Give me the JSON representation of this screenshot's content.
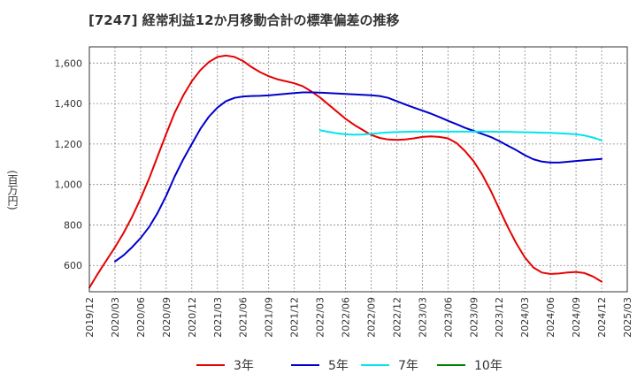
{
  "chart_data": {
    "type": "line",
    "title": "[7247]  経常利益12か月移動合計の標準偏差の推移",
    "ylabel": "(百万円)",
    "xlabel": "",
    "ylim": [
      470,
      1680
    ],
    "yticks": [
      600,
      800,
      1000,
      1200,
      1400,
      1600
    ],
    "ytick_labels": [
      "600",
      "800",
      "1,000",
      "1,200",
      "1,400",
      "1,600"
    ],
    "xticks": [
      "2019/12",
      "2020/03",
      "2020/06",
      "2020/09",
      "2020/12",
      "2021/03",
      "2021/06",
      "2021/09",
      "2021/12",
      "2022/03",
      "2022/06",
      "2022/09",
      "2022/12",
      "2023/03",
      "2023/06",
      "2023/09",
      "2023/12",
      "2024/03",
      "2024/06",
      "2024/09",
      "2024/12",
      "2025/03"
    ],
    "grid": true,
    "legend_position": "bottom",
    "series": [
      {
        "name": "3年",
        "color": "#e60000",
        "x": [
          "2019/12",
          "2020/01",
          "2020/02",
          "2020/03",
          "2020/04",
          "2020/05",
          "2020/06",
          "2020/07",
          "2020/08",
          "2020/09",
          "2020/10",
          "2020/11",
          "2020/12",
          "2021/01",
          "2021/02",
          "2021/03",
          "2021/04",
          "2021/05",
          "2021/06",
          "2021/07",
          "2021/08",
          "2021/09",
          "2021/10",
          "2021/11",
          "2021/12",
          "2022/01",
          "2022/02",
          "2022/03",
          "2022/04",
          "2022/05",
          "2022/06",
          "2022/07",
          "2022/08",
          "2022/09",
          "2022/10",
          "2022/11",
          "2022/12",
          "2023/01",
          "2023/02",
          "2023/03",
          "2023/04",
          "2023/05",
          "2023/06",
          "2023/07",
          "2023/08",
          "2023/09",
          "2023/10",
          "2023/11",
          "2023/12",
          "2024/01",
          "2024/02",
          "2024/03",
          "2024/04",
          "2024/05",
          "2024/06",
          "2024/07",
          "2024/08",
          "2024/09",
          "2024/10",
          "2024/11",
          "2024/12"
        ],
        "values": [
          490,
          560,
          625,
          690,
          760,
          840,
          930,
          1030,
          1140,
          1250,
          1355,
          1440,
          1510,
          1565,
          1605,
          1630,
          1637,
          1630,
          1610,
          1580,
          1555,
          1535,
          1520,
          1510,
          1500,
          1485,
          1460,
          1430,
          1395,
          1360,
          1325,
          1295,
          1270,
          1245,
          1230,
          1222,
          1220,
          1222,
          1228,
          1235,
          1238,
          1235,
          1228,
          1205,
          1165,
          1115,
          1050,
          970,
          880,
          790,
          710,
          640,
          590,
          565,
          558,
          560,
          565,
          568,
          562,
          545,
          520
        ]
      },
      {
        "name": "5年",
        "color": "#0000cc",
        "x": [
          "2020/03",
          "2020/04",
          "2020/05",
          "2020/06",
          "2020/07",
          "2020/08",
          "2020/09",
          "2020/10",
          "2020/11",
          "2020/12",
          "2021/01",
          "2021/02",
          "2021/03",
          "2021/04",
          "2021/05",
          "2021/06",
          "2021/07",
          "2021/08",
          "2021/09",
          "2021/10",
          "2021/11",
          "2021/12",
          "2022/01",
          "2022/02",
          "2022/03",
          "2022/04",
          "2022/05",
          "2022/06",
          "2022/07",
          "2022/08",
          "2022/09",
          "2022/10",
          "2022/11",
          "2022/12",
          "2023/01",
          "2023/02",
          "2023/03",
          "2023/04",
          "2023/05",
          "2023/06",
          "2023/07",
          "2023/08",
          "2023/09",
          "2023/10",
          "2023/11",
          "2023/12",
          "2024/01",
          "2024/02",
          "2024/03",
          "2024/04",
          "2024/05",
          "2024/06",
          "2024/07",
          "2024/08",
          "2024/09",
          "2024/10",
          "2024/11",
          "2024/12"
        ],
        "values": [
          620,
          650,
          690,
          735,
          790,
          860,
          945,
          1040,
          1125,
          1200,
          1275,
          1335,
          1380,
          1412,
          1428,
          1435,
          1437,
          1438,
          1440,
          1444,
          1448,
          1452,
          1455,
          1455,
          1454,
          1452,
          1450,
          1447,
          1445,
          1443,
          1441,
          1437,
          1428,
          1412,
          1395,
          1380,
          1365,
          1350,
          1333,
          1315,
          1298,
          1280,
          1265,
          1250,
          1235,
          1215,
          1192,
          1170,
          1145,
          1125,
          1113,
          1108,
          1108,
          1112,
          1116,
          1120,
          1123,
          1126
        ]
      },
      {
        "name": "7年",
        "color": "#00e5ee",
        "x": [
          "2022/03",
          "2022/04",
          "2022/05",
          "2022/06",
          "2022/07",
          "2022/08",
          "2022/09",
          "2022/10",
          "2022/11",
          "2022/12",
          "2023/01",
          "2023/02",
          "2023/03",
          "2023/04",
          "2023/05",
          "2023/06",
          "2023/07",
          "2023/08",
          "2023/09",
          "2023/10",
          "2023/11",
          "2023/12",
          "2024/01",
          "2024/02",
          "2024/03",
          "2024/04",
          "2024/05",
          "2024/06",
          "2024/07",
          "2024/08",
          "2024/09",
          "2024/10",
          "2024/11",
          "2024/12"
        ],
        "values": [
          1268,
          1260,
          1253,
          1248,
          1246,
          1247,
          1250,
          1254,
          1257,
          1259,
          1260,
          1261,
          1261,
          1261,
          1261,
          1261,
          1261,
          1261,
          1261,
          1261,
          1261,
          1260,
          1260,
          1259,
          1258,
          1257,
          1256,
          1255,
          1253,
          1251,
          1248,
          1242,
          1232,
          1218
        ]
      },
      {
        "name": "10年",
        "color": "#008000",
        "x": [],
        "values": []
      }
    ]
  }
}
